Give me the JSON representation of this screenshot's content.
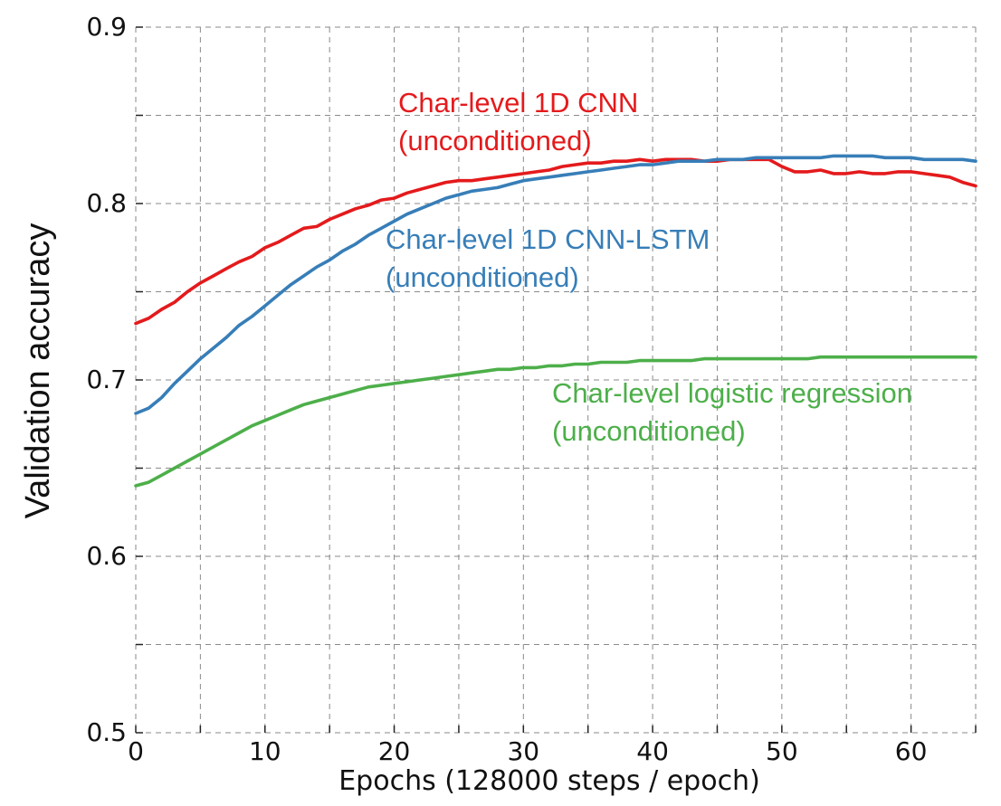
{
  "chart_data": {
    "type": "line",
    "title": "",
    "xlabel": "Epochs (128000 steps / epoch)",
    "ylabel": "Validation accuracy",
    "xlim": [
      0,
      65
    ],
    "ylim": [
      0.5,
      0.9
    ],
    "x_ticks": [
      0,
      10,
      20,
      30,
      40,
      50,
      60
    ],
    "x_tick_labels": [
      "0",
      "10",
      "20",
      "30",
      "40",
      "50",
      "60"
    ],
    "x_minor_ticks": [
      5,
      15,
      25,
      35,
      45,
      55,
      65
    ],
    "y_ticks": [
      0.5,
      0.6,
      0.7,
      0.8,
      0.9
    ],
    "y_tick_labels": [
      "0.5",
      "0.6",
      "0.7",
      "0.8",
      "0.9"
    ],
    "y_minor_ticks": [
      0.55,
      0.65,
      0.75,
      0.85
    ],
    "grid": true,
    "series": [
      {
        "name": "Char-level 1D CNN",
        "label_lines": [
          "Char-level 1D CNN",
          "(unconditioned)"
        ],
        "color": "#e41a1c",
        "x": [
          0,
          1,
          2,
          3,
          4,
          5,
          6,
          7,
          8,
          9,
          10,
          11,
          12,
          13,
          14,
          15,
          16,
          17,
          18,
          19,
          20,
          21,
          22,
          23,
          24,
          25,
          26,
          27,
          28,
          29,
          30,
          31,
          32,
          33,
          34,
          35,
          36,
          37,
          38,
          39,
          40,
          41,
          42,
          43,
          44,
          45,
          46,
          47,
          48,
          49,
          50,
          51,
          52,
          53,
          54,
          55,
          56,
          57,
          58,
          59,
          60,
          61,
          62,
          63,
          64,
          65
        ],
        "values": [
          0.732,
          0.735,
          0.74,
          0.744,
          0.75,
          0.755,
          0.759,
          0.763,
          0.767,
          0.77,
          0.775,
          0.778,
          0.782,
          0.786,
          0.787,
          0.791,
          0.794,
          0.797,
          0.799,
          0.802,
          0.803,
          0.806,
          0.808,
          0.81,
          0.812,
          0.813,
          0.813,
          0.814,
          0.815,
          0.816,
          0.817,
          0.818,
          0.819,
          0.821,
          0.822,
          0.823,
          0.823,
          0.824,
          0.824,
          0.825,
          0.824,
          0.825,
          0.825,
          0.825,
          0.824,
          0.824,
          0.825,
          0.825,
          0.825,
          0.825,
          0.821,
          0.818,
          0.818,
          0.819,
          0.817,
          0.817,
          0.818,
          0.817,
          0.817,
          0.818,
          0.818,
          0.817,
          0.816,
          0.815,
          0.812,
          0.81
        ]
      },
      {
        "name": "Char-level 1D CNN-LSTM",
        "label_lines": [
          "Char-level 1D CNN-LSTM",
          "(unconditioned)"
        ],
        "color": "#377eb8",
        "x": [
          0,
          1,
          2,
          3,
          4,
          5,
          6,
          7,
          8,
          9,
          10,
          11,
          12,
          13,
          14,
          15,
          16,
          17,
          18,
          19,
          20,
          21,
          22,
          23,
          24,
          25,
          26,
          27,
          28,
          29,
          30,
          31,
          32,
          33,
          34,
          35,
          36,
          37,
          38,
          39,
          40,
          41,
          42,
          43,
          44,
          45,
          46,
          47,
          48,
          49,
          50,
          51,
          52,
          53,
          54,
          55,
          56,
          57,
          58,
          59,
          60,
          61,
          62,
          63,
          64,
          65
        ],
        "values": [
          0.681,
          0.684,
          0.69,
          0.698,
          0.705,
          0.712,
          0.718,
          0.724,
          0.731,
          0.736,
          0.742,
          0.748,
          0.754,
          0.759,
          0.764,
          0.768,
          0.773,
          0.777,
          0.782,
          0.786,
          0.79,
          0.794,
          0.797,
          0.8,
          0.803,
          0.805,
          0.807,
          0.808,
          0.809,
          0.811,
          0.813,
          0.814,
          0.815,
          0.816,
          0.817,
          0.818,
          0.819,
          0.82,
          0.821,
          0.822,
          0.822,
          0.823,
          0.824,
          0.824,
          0.824,
          0.825,
          0.825,
          0.825,
          0.826,
          0.826,
          0.826,
          0.826,
          0.826,
          0.826,
          0.827,
          0.827,
          0.827,
          0.827,
          0.826,
          0.826,
          0.826,
          0.825,
          0.825,
          0.825,
          0.825,
          0.824
        ]
      },
      {
        "name": "Char-level logistic regression",
        "label_lines": [
          "Char-level logistic regression",
          "(unconditioned)"
        ],
        "color": "#4daf4a",
        "x": [
          0,
          1,
          2,
          3,
          4,
          5,
          6,
          7,
          8,
          9,
          10,
          11,
          12,
          13,
          14,
          15,
          16,
          17,
          18,
          19,
          20,
          21,
          22,
          23,
          24,
          25,
          26,
          27,
          28,
          29,
          30,
          31,
          32,
          33,
          34,
          35,
          36,
          37,
          38,
          39,
          40,
          41,
          42,
          43,
          44,
          45,
          46,
          47,
          48,
          49,
          50,
          51,
          52,
          53,
          54,
          55,
          56,
          57,
          58,
          59,
          60,
          61,
          62,
          63,
          64,
          65
        ],
        "values": [
          0.64,
          0.642,
          0.646,
          0.65,
          0.654,
          0.658,
          0.662,
          0.666,
          0.67,
          0.674,
          0.677,
          0.68,
          0.683,
          0.686,
          0.688,
          0.69,
          0.692,
          0.694,
          0.696,
          0.697,
          0.698,
          0.699,
          0.7,
          0.701,
          0.702,
          0.703,
          0.704,
          0.705,
          0.706,
          0.706,
          0.707,
          0.707,
          0.708,
          0.708,
          0.709,
          0.709,
          0.71,
          0.71,
          0.71,
          0.711,
          0.711,
          0.711,
          0.711,
          0.711,
          0.712,
          0.712,
          0.712,
          0.712,
          0.712,
          0.712,
          0.712,
          0.712,
          0.712,
          0.713,
          0.713,
          0.713,
          0.713,
          0.713,
          0.713,
          0.713,
          0.713,
          0.713,
          0.713,
          0.713,
          0.713,
          0.713
        ]
      }
    ]
  }
}
